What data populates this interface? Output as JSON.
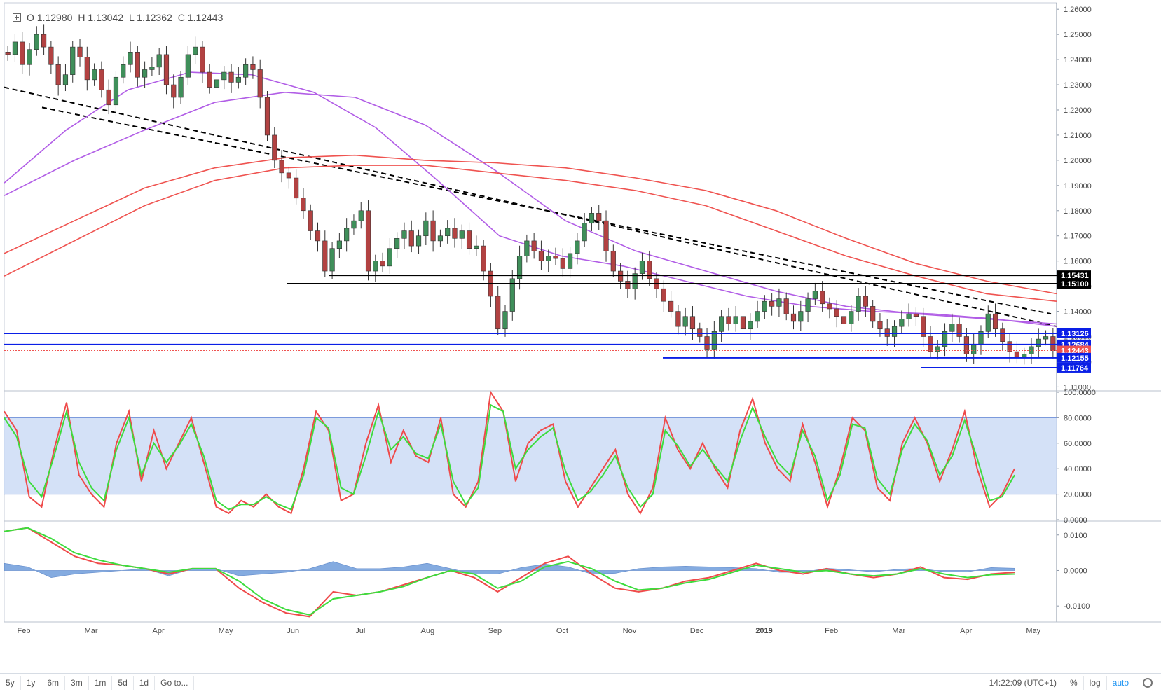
{
  "ohlc": {
    "open": "O 1.12980",
    "high": "H 1.13042",
    "low": "L 1.12362",
    "close": "C 1.12443"
  },
  "colors": {
    "up": "#26a69a",
    "down": "#ef5350",
    "candle_up": "#3f8f5a",
    "candle_down": "#b24242",
    "ma_purple": "#b15de6",
    "ma_red": "#ef5350",
    "trend": "#000000",
    "support_blue": "#0a1fe6",
    "stoch_k": "#ef4a4a",
    "stoch_d": "#3ddc3d",
    "stoch_band": "#c9d9f5",
    "macd": "#ef4a4a",
    "signal": "#3ddc3d",
    "hist": "#5b8fd6"
  },
  "chart_data": [
    {
      "type": "line",
      "title": "",
      "description_series": [
        "EUR/USD daily candlesticks",
        "moving averages"
      ],
      "x_ticks": [
        "Feb",
        "Mar",
        "Apr",
        "May",
        "Jun",
        "Jul",
        "Aug",
        "Sep",
        "Oct",
        "Nov",
        "Dec",
        "2019",
        "Feb",
        "Mar",
        "Apr",
        "May"
      ],
      "y_ticks": [
        "1.26000",
        "1.25000",
        "1.24000",
        "1.23000",
        "1.22000",
        "1.21000",
        "1.20000",
        "1.19000",
        "1.18000",
        "1.17000",
        "1.16000",
        "1.15000",
        "1.14000",
        "1.13000",
        "1.12000",
        "1.11000"
      ],
      "ylim": [
        1.109,
        1.262
      ],
      "series": [
        {
          "name": "",
          "kind": "candles",
          "values": [
            1.242,
            1.247,
            1.238,
            1.244,
            1.25,
            1.245,
            1.238,
            1.23,
            1.234,
            1.245,
            1.241,
            1.232,
            1.236,
            1.228,
            1.222,
            1.233,
            1.238,
            1.243,
            1.233,
            1.236,
            1.237,
            1.242,
            1.23,
            1.225,
            1.233,
            1.242,
            1.245,
            1.235,
            1.229,
            1.232,
            1.235,
            1.231,
            1.233,
            1.238,
            1.236,
            1.225,
            1.21,
            1.2,
            1.195,
            1.193,
            1.185,
            1.18,
            1.172,
            1.168,
            1.156,
            1.165,
            1.168,
            1.173,
            1.176,
            1.18,
            1.156,
            1.16,
            1.158,
            1.165,
            1.169,
            1.172,
            1.166,
            1.17,
            1.176,
            1.168,
            1.17,
            1.173,
            1.169,
            1.172,
            1.165,
            1.166,
            1.156,
            1.146,
            1.133,
            1.14,
            1.153,
            1.162,
            1.168,
            1.164,
            1.16,
            1.162,
            1.161,
            1.157,
            1.163,
            1.168,
            1.175,
            1.179,
            1.176,
            1.164,
            1.156,
            1.152,
            1.149,
            1.155,
            1.16,
            1.153,
            1.149,
            1.144,
            1.14,
            1.134,
            1.138,
            1.133,
            1.13,
            1.125,
            1.132,
            1.138,
            1.135,
            1.138,
            1.133,
            1.136,
            1.14,
            1.144,
            1.142,
            1.145,
            1.139,
            1.136,
            1.14,
            1.145,
            1.148,
            1.143,
            1.141,
            1.138,
            1.135,
            1.14,
            1.146,
            1.142,
            1.136,
            1.133,
            1.13,
            1.134,
            1.137,
            1.139,
            1.138,
            1.13,
            1.124,
            1.126,
            1.132,
            1.135,
            1.13,
            1.123,
            1.127,
            1.132,
            1.139,
            1.133,
            1.128,
            1.124,
            1.122,
            1.123,
            1.126,
            1.129,
            1.13,
            1.1244
          ]
        },
        {
          "name": "",
          "kind": "ma",
          "color": "ma_purple",
          "values": [
            1.191,
            1.212,
            1.228,
            1.235,
            1.234,
            1.227,
            1.213,
            1.192,
            1.17,
            1.162,
            1.158,
            1.152,
            1.146,
            1.142,
            1.14,
            1.139,
            1.137,
            1.134
          ]
        },
        {
          "name": "",
          "kind": "ma",
          "color": "ma_purple",
          "values": [
            1.186,
            1.2,
            1.212,
            1.223,
            1.227,
            1.225,
            1.214,
            1.196,
            1.176,
            1.164,
            1.156,
            1.148,
            1.142,
            1.139,
            1.137,
            1.135
          ]
        },
        {
          "name": "",
          "kind": "ma",
          "color": "ma_red",
          "values": [
            1.163,
            1.176,
            1.189,
            1.197,
            1.201,
            1.202,
            1.2,
            1.199,
            1.197,
            1.193,
            1.188,
            1.18,
            1.169,
            1.159,
            1.152,
            1.147
          ]
        },
        {
          "name": "",
          "kind": "ma",
          "color": "ma_red",
          "values": [
            1.154,
            1.168,
            1.182,
            1.192,
            1.197,
            1.198,
            1.198,
            1.195,
            1.192,
            1.188,
            1.182,
            1.172,
            1.162,
            1.154,
            1.147,
            1.144
          ]
        }
      ],
      "horizontal_levels": [
        {
          "label": "1.15431",
          "value": 1.15431,
          "color": "trend"
        },
        {
          "label": "1.15100",
          "value": 1.151,
          "color": "trend"
        },
        {
          "label": "1.13126",
          "value": 1.13126,
          "color": "support_blue"
        },
        {
          "label": "1.12684",
          "value": 1.12684,
          "color": "support_blue"
        },
        {
          "label": "1.12443",
          "value": 1.12443,
          "color": "ma_red"
        },
        {
          "label": "1.12155",
          "value": 1.12155,
          "color": "support_blue"
        },
        {
          "label": "1.11764",
          "value": 1.11764,
          "color": "support_blue"
        }
      ]
    },
    {
      "type": "line",
      "title": "",
      "y_ticks": [
        "100.0000",
        "80.0000",
        "60.0000",
        "40.0000",
        "20.0000",
        "0.0000"
      ],
      "ylim": [
        0,
        100
      ],
      "band": [
        20,
        80
      ],
      "series": [
        {
          "name": "",
          "color": "stoch_k",
          "values": [
            85,
            70,
            18,
            10,
            55,
            92,
            35,
            20,
            10,
            60,
            85,
            30,
            70,
            40,
            60,
            80,
            45,
            10,
            5,
            15,
            10,
            20,
            10,
            5,
            40,
            85,
            70,
            15,
            20,
            60,
            90,
            45,
            70,
            50,
            45,
            80,
            20,
            10,
            30,
            100,
            85,
            30,
            60,
            70,
            75,
            30,
            10,
            25,
            40,
            55,
            20,
            5,
            25,
            80,
            55,
            40,
            60,
            40,
            25,
            70,
            95,
            60,
            40,
            30,
            75,
            45,
            10,
            40,
            80,
            70,
            25,
            15,
            60,
            80,
            60,
            30,
            55,
            85,
            40,
            10,
            20,
            40
          ]
        },
        {
          "name": "",
          "color": "stoch_d",
          "values": [
            80,
            65,
            30,
            18,
            50,
            85,
            45,
            25,
            15,
            55,
            80,
            35,
            60,
            45,
            58,
            75,
            50,
            15,
            8,
            12,
            12,
            18,
            12,
            8,
            35,
            80,
            72,
            25,
            20,
            50,
            85,
            55,
            65,
            52,
            48,
            75,
            30,
            12,
            25,
            90,
            85,
            40,
            55,
            65,
            72,
            38,
            15,
            22,
            35,
            50,
            25,
            10,
            20,
            70,
            58,
            42,
            55,
            42,
            30,
            62,
            88,
            65,
            45,
            35,
            70,
            50,
            15,
            35,
            75,
            72,
            32,
            20,
            55,
            75,
            62,
            35,
            50,
            78,
            48,
            15,
            18,
            35
          ]
        }
      ]
    },
    {
      "type": "area",
      "title": "",
      "y_ticks": [
        "0.0100",
        "0.0000",
        "-0.0100"
      ],
      "ylim": [
        -0.0145,
        0.0135
      ],
      "series": [
        {
          "name": "",
          "color": "macd",
          "values": [
            0.011,
            0.012,
            0.008,
            0.004,
            0.002,
            0.0015,
            0.0005,
            -0.001,
            0.0005,
            0.0005,
            -0.005,
            -0.009,
            -0.012,
            -0.013,
            -0.006,
            -0.007,
            -0.006,
            -0.004,
            -0.002,
            0.0,
            -0.002,
            -0.006,
            -0.002,
            0.002,
            0.004,
            -0.001,
            -0.005,
            -0.006,
            -0.005,
            -0.003,
            -0.002,
            0.0,
            0.002,
            0.0,
            -0.001,
            0.0005,
            -0.001,
            -0.002,
            -0.001,
            0.001,
            -0.002,
            -0.0025,
            -0.001,
            -0.0005
          ]
        },
        {
          "name": "",
          "color": "signal",
          "values": [
            0.011,
            0.012,
            0.009,
            0.005,
            0.003,
            0.0015,
            0.0005,
            -0.0005,
            0.0005,
            0.0005,
            -0.003,
            -0.008,
            -0.011,
            -0.0125,
            -0.008,
            -0.007,
            -0.006,
            -0.0045,
            -0.002,
            0.0,
            -0.001,
            -0.005,
            -0.003,
            0.001,
            0.0025,
            0.0005,
            -0.003,
            -0.0055,
            -0.005,
            -0.0035,
            -0.0025,
            -0.0005,
            0.0015,
            0.0005,
            -0.0005,
            0.0,
            -0.001,
            -0.0015,
            -0.001,
            0.0005,
            -0.001,
            -0.002,
            -0.0012,
            -0.001
          ]
        },
        {
          "name": "",
          "color": "hist",
          "values": [
            0.002,
            0.001,
            -0.002,
            -0.001,
            -0.0005,
            0.0,
            0.0005,
            -0.0015,
            0.0005,
            0.0005,
            -0.0015,
            -0.001,
            -0.0005,
            0.0005,
            0.0025,
            0.0005,
            0.0005,
            0.001,
            0.002,
            0.0005,
            -0.001,
            -0.001,
            0.0008,
            0.0018,
            0.001,
            -0.001,
            -0.0008,
            0.0005,
            0.001,
            0.0012,
            0.001,
            0.0008,
            0.0005,
            -0.0005,
            -0.0005,
            0.0006,
            0.0002,
            -0.0004,
            0.0003,
            0.0006,
            -0.0004,
            -0.0004,
            0.0008,
            0.0006
          ]
        }
      ]
    }
  ],
  "toolbar": {
    "buttons": [
      "5y",
      "1y",
      "6m",
      "3m",
      "1m",
      "5d",
      "1d",
      "Go to..."
    ],
    "clock": "14:22:09 (UTC+1)",
    "right": [
      "%",
      "log",
      "auto"
    ]
  }
}
